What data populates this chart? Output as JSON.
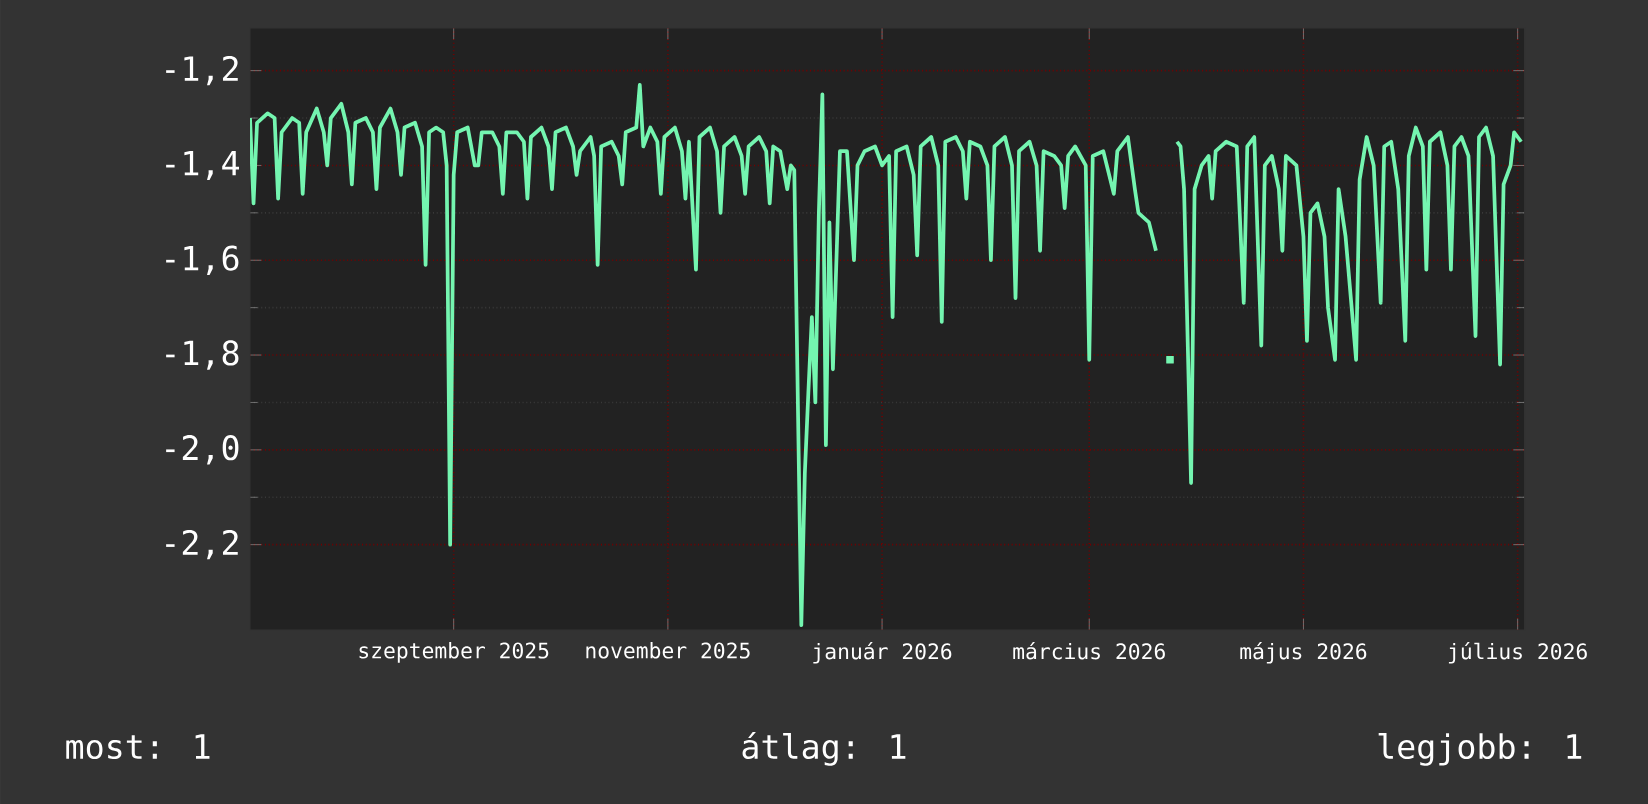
{
  "chart_data": {
    "type": "line",
    "x": [
      "2025-07-19",
      "2025-07-20",
      "2025-07-21",
      "2025-07-24",
      "2025-07-26",
      "2025-07-27",
      "2025-07-28",
      "2025-07-31",
      "2025-08-02",
      "2025-08-03",
      "2025-08-04",
      "2025-08-07",
      "2025-08-09",
      "2025-08-10",
      "2025-08-11",
      "2025-08-14",
      "2025-08-16",
      "2025-08-17",
      "2025-08-18",
      "2025-08-21",
      "2025-08-23",
      "2025-08-24",
      "2025-08-25",
      "2025-08-28",
      "2025-08-30",
      "2025-08-31",
      "2025-09-01",
      "2025-09-04",
      "2025-09-06",
      "2025-09-07",
      "2025-09-08",
      "2025-09-10",
      "2025-09-12",
      "2025-09-13",
      "2025-09-14",
      "2025-09-15",
      "2025-09-16",
      "2025-09-19",
      "2025-09-21",
      "2025-09-22",
      "2025-09-23",
      "2025-09-26",
      "2025-09-28",
      "2025-09-29",
      "2025-09-30",
      "2025-10-03",
      "2025-10-05",
      "2025-10-06",
      "2025-10-07",
      "2025-10-10",
      "2025-10-12",
      "2025-10-13",
      "2025-10-14",
      "2025-10-17",
      "2025-10-19",
      "2025-10-20",
      "2025-10-21",
      "2025-10-24",
      "2025-10-25",
      "2025-10-26",
      "2025-10-27",
      "2025-10-30",
      "2025-11-01",
      "2025-11-02",
      "2025-11-03",
      "2025-11-06",
      "2025-11-07",
      "2025-11-08",
      "2025-11-10",
      "2025-11-12",
      "2025-11-13",
      "2025-11-14",
      "2025-11-17",
      "2025-11-19",
      "2025-11-20",
      "2025-11-21",
      "2025-11-23",
      "2025-11-24",
      "2025-11-27",
      "2025-11-29",
      "2025-11-30",
      "2025-12-01",
      "2025-12-04",
      "2025-12-06",
      "2025-12-07",
      "2025-12-08",
      "2025-12-11",
      "2025-12-13",
      "2025-12-14",
      "2025-12-15",
      "2025-12-17",
      "2025-12-19",
      "2025-12-20",
      "2025-12-21",
      "2025-12-23",
      "2025-12-24",
      "2025-12-25",
      "2025-12-26",
      "2025-12-27",
      "2025-12-28",
      "2025-12-29",
      "2025-12-30",
      "2025-12-31",
      "2026-01-01",
      "2026-01-03",
      "2026-01-05",
      "2026-01-07",
      "2026-01-08",
      "2026-01-10",
      "2026-01-13",
      "2026-01-15",
      "2026-01-17",
      "2026-01-18",
      "2026-01-19",
      "2026-01-22",
      "2026-01-24",
      "2026-01-25",
      "2026-01-26",
      "2026-01-29",
      "2026-01-31",
      "2026-02-01",
      "2026-02-02",
      "2026-02-05",
      "2026-02-07",
      "2026-02-08",
      "2026-02-09",
      "2026-02-12",
      "2026-02-14",
      "2026-02-15",
      "2026-02-16",
      "2026-02-19",
      "2026-02-21",
      "2026-02-22",
      "2026-02-23",
      "2026-02-26",
      "2026-02-28",
      "2026-03-01",
      "2026-03-02",
      "2026-03-05",
      "2026-03-07",
      "2026-03-08",
      "2026-03-09",
      "2026-03-11",
      "2026-03-14",
      "2026-03-15",
      "2026-03-16",
      "2026-03-19",
      "2026-03-21",
      "2026-03-22",
      "2026-03-23",
      "2026-03-26",
      "2026-03-28",
      "2026-03-29",
      "2026-04-01",
      "2026-04-03",
      "2026-04-05",
      "2026-04-07",
      "2026-04-08",
      "2026-04-09",
      "2026-04-10",
      "2026-04-11",
      "2026-04-13",
      "2026-04-14",
      "2026-04-16",
      "2026-04-18",
      "2026-04-19",
      "2026-04-20",
      "2026-04-23",
      "2026-04-26",
      "2026-04-28",
      "2026-04-29",
      "2026-05-01",
      "2026-05-03",
      "2026-05-04",
      "2026-05-06",
      "2026-05-08",
      "2026-05-09",
      "2026-05-10",
      "2026-05-13",
      "2026-05-15",
      "2026-05-16",
      "2026-05-17",
      "2026-05-19",
      "2026-05-21",
      "2026-05-22",
      "2026-05-24",
      "2026-05-25",
      "2026-05-27",
      "2026-05-30",
      "2026-05-31",
      "2026-06-02",
      "2026-06-04",
      "2026-06-06",
      "2026-06-07",
      "2026-06-09",
      "2026-06-11",
      "2026-06-13",
      "2026-06-14",
      "2026-06-16",
      "2026-06-18",
      "2026-06-19",
      "2026-06-20",
      "2026-06-23",
      "2026-06-25",
      "2026-06-26",
      "2026-06-27",
      "2026-06-29",
      "2026-07-01",
      "2026-07-03",
      "2026-07-04",
      "2026-07-06",
      "2026-07-08",
      "2026-07-10",
      "2026-07-11",
      "2026-07-13",
      "2026-07-14",
      "2026-07-16"
    ],
    "series": [
      {
        "color": "#74f5b0",
        "values": [
          -1.3,
          -1.48,
          -1.31,
          -1.29,
          -1.3,
          -1.47,
          -1.33,
          -1.3,
          -1.31,
          -1.46,
          -1.33,
          -1.28,
          -1.33,
          -1.4,
          -1.3,
          -1.27,
          -1.33,
          -1.44,
          -1.31,
          -1.3,
          -1.33,
          -1.45,
          -1.32,
          -1.28,
          -1.33,
          -1.42,
          -1.32,
          -1.31,
          -1.36,
          -1.61,
          -1.33,
          -1.32,
          -1.33,
          -1.4,
          -2.2,
          -1.42,
          -1.33,
          -1.32,
          -1.4,
          -1.4,
          -1.33,
          -1.33,
          -1.36,
          -1.46,
          -1.33,
          -1.33,
          -1.35,
          -1.47,
          -1.34,
          -1.32,
          -1.36,
          -1.45,
          -1.33,
          -1.32,
          -1.36,
          -1.42,
          -1.37,
          -1.34,
          -1.38,
          -1.61,
          -1.36,
          -1.35,
          -1.38,
          -1.44,
          -1.33,
          -1.32,
          -1.23,
          -1.36,
          -1.32,
          -1.35,
          -1.46,
          -1.34,
          -1.32,
          -1.37,
          -1.47,
          -1.35,
          -1.62,
          -1.34,
          -1.32,
          -1.37,
          -1.5,
          -1.36,
          -1.34,
          -1.38,
          -1.46,
          -1.36,
          -1.34,
          -1.37,
          -1.48,
          -1.36,
          -1.37,
          -1.45,
          -1.4,
          -1.41,
          -2.37,
          -2.05,
          -1.88,
          -1.72,
          -1.9,
          -1.5,
          -1.25,
          -1.99,
          -1.52,
          -1.83,
          -1.37,
          -1.37,
          -1.6,
          -1.4,
          -1.37,
          -1.36,
          -1.4,
          -1.38,
          -1.72,
          -1.37,
          -1.36,
          -1.42,
          -1.59,
          -1.36,
          -1.34,
          -1.4,
          -1.73,
          -1.35,
          -1.34,
          -1.37,
          -1.47,
          -1.35,
          -1.36,
          -1.4,
          -1.6,
          -1.36,
          -1.34,
          -1.4,
          -1.68,
          -1.37,
          -1.35,
          -1.4,
          -1.58,
          -1.37,
          -1.38,
          -1.4,
          -1.49,
          -1.38,
          -1.36,
          -1.4,
          -1.81,
          -1.38,
          -1.37,
          -1.43,
          -1.46,
          -1.37,
          -1.34,
          -1.45,
          -1.5,
          -1.52,
          -1.58,
          null,
          -1.81,
          null,
          -1.35,
          -1.36,
          -1.45,
          -2.07,
          -1.45,
          -1.4,
          -1.38,
          -1.47,
          -1.37,
          -1.35,
          -1.36,
          -1.69,
          -1.36,
          -1.34,
          -1.78,
          -1.4,
          -1.38,
          -1.45,
          -1.58,
          -1.38,
          -1.4,
          -1.55,
          -1.77,
          -1.5,
          -1.48,
          -1.55,
          -1.7,
          -1.81,
          -1.45,
          -1.55,
          -1.81,
          -1.43,
          -1.34,
          -1.4,
          -1.69,
          -1.36,
          -1.35,
          -1.45,
          -1.77,
          -1.38,
          -1.32,
          -1.36,
          -1.62,
          -1.35,
          -1.33,
          -1.4,
          -1.62,
          -1.36,
          -1.34,
          -1.38,
          -1.76,
          -1.34,
          -1.32,
          -1.38,
          -1.82,
          -1.44,
          -1.4,
          -1.33,
          -1.35
        ]
      }
    ],
    "xlim": [
      "2025-07-19",
      "2026-07-17"
    ],
    "xticks": [
      {
        "value": "2025-09-15",
        "label": "szeptember 2025"
      },
      {
        "value": "2025-11-15",
        "label": "november 2025"
      },
      {
        "value": "2026-01-15",
        "label": "január 2026"
      },
      {
        "value": "2026-03-15",
        "label": "március 2026"
      },
      {
        "value": "2026-05-15",
        "label": "május 2026"
      },
      {
        "value": "2026-07-15",
        "label": "július 2026"
      }
    ],
    "ylim": [
      -2.38,
      -1.11
    ],
    "yticks": [
      {
        "value": -1.2,
        "label": "-1,2"
      },
      {
        "value": -1.4,
        "label": "-1,4"
      },
      {
        "value": -1.6,
        "label": "-1,6"
      },
      {
        "value": -1.8,
        "label": "-1,8"
      },
      {
        "value": -2.0,
        "label": "-2,0"
      },
      {
        "value": -2.2,
        "label": "-2,2"
      }
    ],
    "grid": true,
    "legend": false,
    "marker": "none",
    "line_style": "solid",
    "annotations": [
      "most: 1",
      "átlag: 1",
      "legjobb: 1"
    ]
  }
}
